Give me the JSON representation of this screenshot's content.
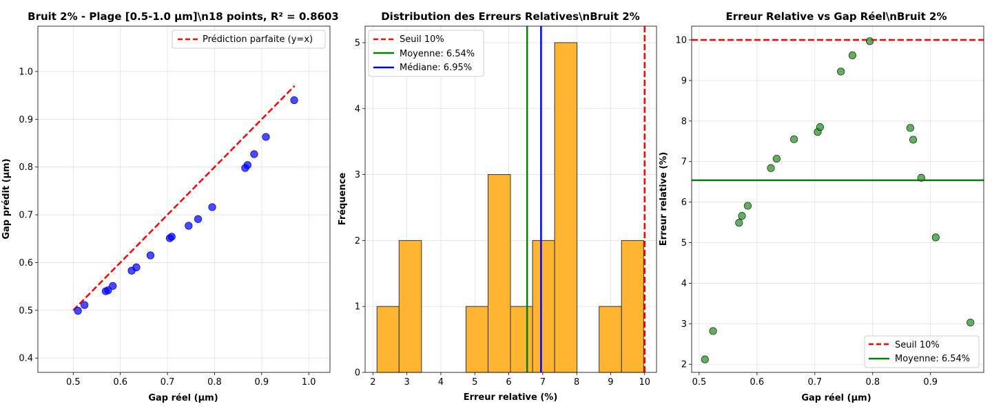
{
  "chart_data": [
    {
      "type": "scatter",
      "title": "Bruit 2% - Plage [0.5-1.0 µm]\\n18 points, R² = 0.8603",
      "xlabel": "Gap réel (µm)",
      "ylabel": "Gap prédit (µm)",
      "xlim": [
        0.425,
        1.045
      ],
      "ylim": [
        0.37,
        1.095
      ],
      "xticks": [
        0.5,
        0.6,
        0.7,
        0.8,
        0.9,
        1.0
      ],
      "yticks": [
        0.4,
        0.5,
        0.6,
        0.7,
        0.8,
        0.9,
        1.0
      ],
      "grid": true,
      "legend_position": "top-right",
      "points": [
        [
          0.51,
          0.499
        ],
        [
          0.524,
          0.511
        ],
        [
          0.569,
          0.54
        ],
        [
          0.574,
          0.542
        ],
        [
          0.584,
          0.551
        ],
        [
          0.624,
          0.583
        ],
        [
          0.634,
          0.59
        ],
        [
          0.664,
          0.615
        ],
        [
          0.705,
          0.651
        ],
        [
          0.709,
          0.654
        ],
        [
          0.745,
          0.677
        ],
        [
          0.765,
          0.691
        ],
        [
          0.795,
          0.716
        ],
        [
          0.865,
          0.798
        ],
        [
          0.87,
          0.804
        ],
        [
          0.884,
          0.827
        ],
        [
          0.909,
          0.863
        ],
        [
          0.969,
          0.94
        ]
      ],
      "point_color": "#0000ff",
      "reference_line": {
        "label": "Prédiction parfaite (y=x)",
        "from": [
          0.5,
          0.5
        ],
        "to": [
          0.97,
          0.97
        ],
        "color": "#ff0000"
      }
    },
    {
      "type": "bar",
      "title": "Distribution des Erreurs Relatives\\nBruit 2%",
      "xlabel": "Erreur relative (%)",
      "ylabel": "Fréquence",
      "xlim": [
        1.77,
        10.35
      ],
      "ylim": [
        0,
        5.25
      ],
      "xticks": [
        2,
        3,
        4,
        5,
        6,
        7,
        8,
        9,
        10
      ],
      "yticks": [
        0,
        1,
        2,
        3,
        4,
        5
      ],
      "grid": true,
      "legend_position": "top-left",
      "bin_edges": [
        2.12,
        2.77,
        3.43,
        4.08,
        4.74,
        5.39,
        6.05,
        6.7,
        7.35,
        8.01,
        8.66,
        9.32,
        9.97
      ],
      "counts": [
        1,
        2,
        0,
        0,
        1,
        3,
        1,
        2,
        5,
        0,
        1,
        2
      ],
      "bar_color": "#ffb432",
      "vlines": [
        {
          "label": "Seuil 10%",
          "x": 10,
          "color": "#ff0000",
          "style": "dashed"
        },
        {
          "label": "Moyenne: 6.54%",
          "x": 6.54,
          "color": "#008000",
          "style": "solid"
        },
        {
          "label": "Médiane: 6.95%",
          "x": 6.95,
          "color": "#0000ff",
          "style": "solid"
        }
      ]
    },
    {
      "type": "scatter",
      "title": "Erreur Relative vs Gap Réel\\nBruit 2%",
      "xlabel": "Gap réel (µm)",
      "ylabel": "Erreur relative (%)",
      "xlim": [
        0.487,
        0.992
      ],
      "ylim": [
        1.8,
        10.34
      ],
      "xticks": [
        0.5,
        0.6,
        0.7,
        0.8,
        0.9
      ],
      "yticks": [
        2,
        3,
        4,
        5,
        6,
        7,
        8,
        9,
        10
      ],
      "grid": true,
      "legend_position": "bottom-right",
      "points": [
        [
          0.51,
          2.12
        ],
        [
          0.524,
          2.82
        ],
        [
          0.569,
          5.49
        ],
        [
          0.574,
          5.66
        ],
        [
          0.584,
          5.91
        ],
        [
          0.624,
          6.84
        ],
        [
          0.634,
          7.07
        ],
        [
          0.664,
          7.55
        ],
        [
          0.705,
          7.73
        ],
        [
          0.709,
          7.85
        ],
        [
          0.745,
          9.22
        ],
        [
          0.765,
          9.62
        ],
        [
          0.795,
          9.97
        ],
        [
          0.865,
          7.83
        ],
        [
          0.87,
          7.54
        ],
        [
          0.884,
          6.6
        ],
        [
          0.909,
          5.13
        ],
        [
          0.969,
          3.03
        ]
      ],
      "point_color": "#228b22",
      "hlines": [
        {
          "label": "Seuil 10%",
          "y": 10,
          "color": "#ff0000",
          "style": "dashed"
        },
        {
          "label": "Moyenne: 6.54%",
          "y": 6.54,
          "color": "#008000",
          "style": "solid"
        }
      ]
    }
  ]
}
